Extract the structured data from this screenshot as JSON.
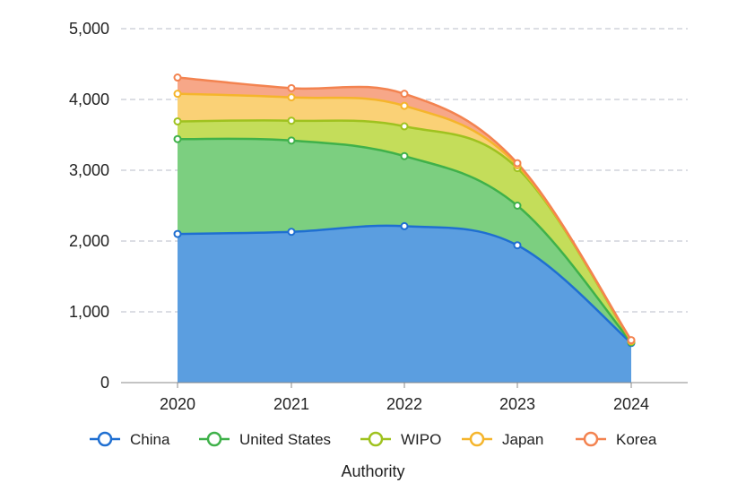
{
  "chart_data": {
    "type": "area",
    "stacked": true,
    "title": "",
    "xlabel": "Authority",
    "ylabel": "",
    "x": [
      "2020",
      "2021",
      "2022",
      "2023",
      "2024"
    ],
    "ylim": [
      0,
      5000
    ],
    "yticks": [
      0,
      1000,
      2000,
      3000,
      4000,
      5000
    ],
    "ytick_labels": [
      "0",
      "1,000",
      "2,000",
      "3,000",
      "4,000",
      "5,000"
    ],
    "grid": "horizontal dashed",
    "legend_position": "bottom",
    "series": [
      {
        "name": "China",
        "color": "#5b9ee0",
        "line_color": "#1f6fd1",
        "values": [
          2100,
          2130,
          2210,
          1940,
          560
        ]
      },
      {
        "name": "United States",
        "color": "#7ccf80",
        "line_color": "#3fb14a",
        "values": [
          1340,
          1290,
          990,
          560,
          10
        ]
      },
      {
        "name": "WIPO",
        "color": "#c4dd5a",
        "line_color": "#9fc21f",
        "values": [
          250,
          280,
          420,
          530,
          10
        ]
      },
      {
        "name": "Japan",
        "color": "#fad176",
        "line_color": "#f5b52c",
        "values": [
          390,
          330,
          290,
          40,
          10
        ]
      },
      {
        "name": "Korea",
        "color": "#f7a788",
        "line_color": "#f38350",
        "values": [
          230,
          130,
          170,
          30,
          10
        ]
      }
    ]
  }
}
